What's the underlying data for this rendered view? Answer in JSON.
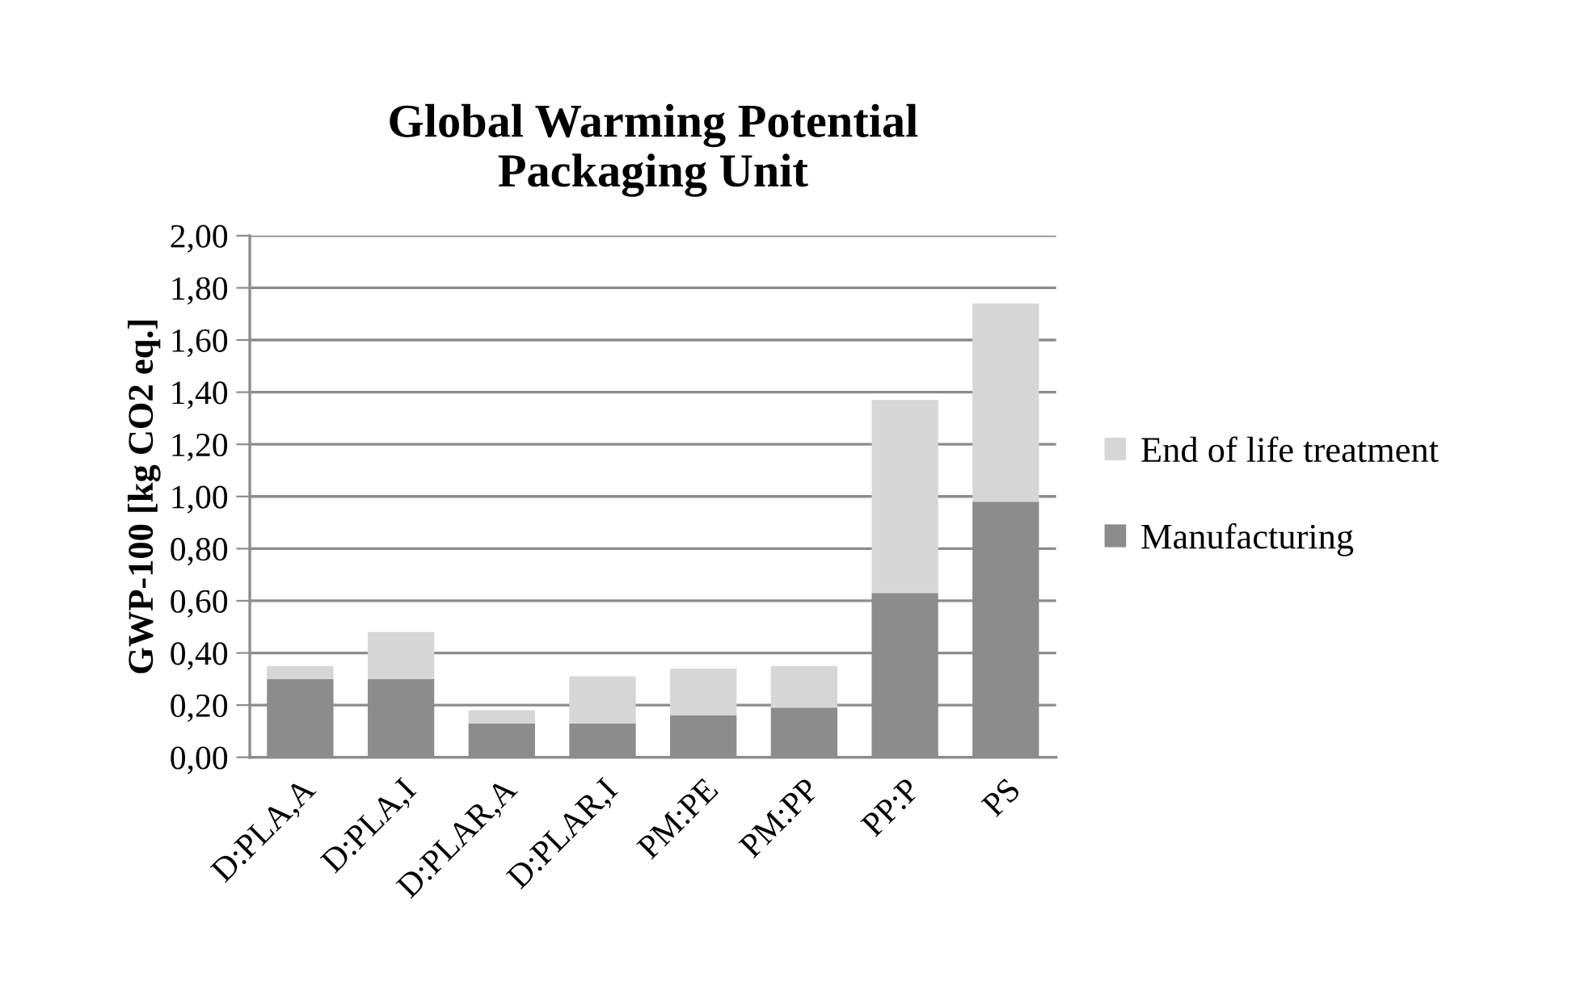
{
  "chart_data": {
    "type": "bar",
    "title": "Global Warming Potential\nPackaging Unit",
    "ylabel": "GWP-100 [kg CO2 eq.]",
    "categories": [
      "D:PLA,A",
      "D:PLA,I",
      "D:PLAR,A",
      "D:PLAR,I",
      "PM:PE",
      "PM:PP",
      "PP:P",
      "PS"
    ],
    "stacked": true,
    "series": [
      {
        "name": "Manufacturing",
        "color": "#8c8c8c",
        "values": [
          0.3,
          0.3,
          0.13,
          0.13,
          0.16,
          0.19,
          0.63,
          0.98
        ]
      },
      {
        "name": "End of life treatment",
        "color": "#d6d6d6",
        "values": [
          0.05,
          0.18,
          0.05,
          0.18,
          0.18,
          0.16,
          0.74,
          0.76
        ]
      }
    ],
    "ylim": [
      0,
      2
    ],
    "yticks": [
      {
        "value": 0,
        "label": "0,00"
      },
      {
        "value": 0.2,
        "label": "0,20"
      },
      {
        "value": 0.4,
        "label": "0,40"
      },
      {
        "value": 0.6,
        "label": "0,60"
      },
      {
        "value": 0.8,
        "label": "0,80"
      },
      {
        "value": 1.0,
        "label": "1,00"
      },
      {
        "value": 1.2,
        "label": "1,20"
      },
      {
        "value": 1.4,
        "label": "1,40"
      },
      {
        "value": 1.6,
        "label": "1,60"
      },
      {
        "value": 1.8,
        "label": "1,80"
      },
      {
        "value": 2.0,
        "label": "2,00"
      }
    ],
    "grid": "y",
    "legend": "right"
  }
}
